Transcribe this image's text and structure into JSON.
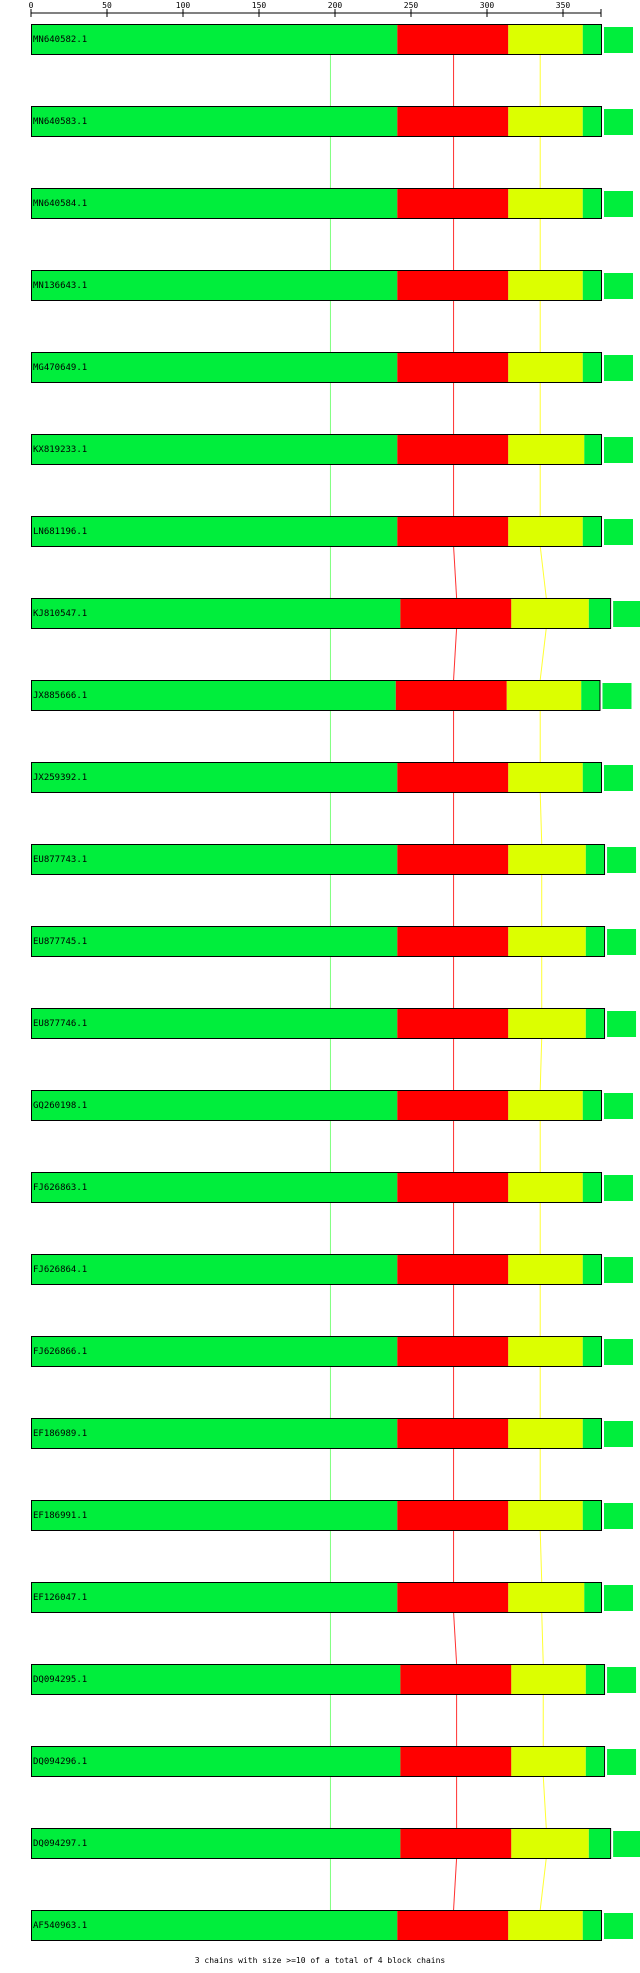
{
  "axis": {
    "ticks": [
      0,
      50,
      100,
      150,
      200,
      250,
      300,
      350
    ],
    "range": [
      0,
      375
    ]
  },
  "colors": {
    "green": "#00ee3c",
    "red": "#ff0000",
    "yellow": "#dcff00",
    "outline": "#000000",
    "axis": "#000000",
    "green_link": "#7dff7d",
    "red_link": "#ff3030",
    "yellow_link": "#ffff30"
  },
  "sequences": [
    {
      "id": "MN640582.1",
      "seg1_end": 241,
      "seg2_end": 314,
      "seg3_end": 363,
      "total": 375
    },
    {
      "id": "MN640583.1",
      "seg1_end": 241,
      "seg2_end": 314,
      "seg3_end": 363,
      "total": 375
    },
    {
      "id": "MN640584.1",
      "seg1_end": 241,
      "seg2_end": 314,
      "seg3_end": 363,
      "total": 375
    },
    {
      "id": "MN136643.1",
      "seg1_end": 241,
      "seg2_end": 314,
      "seg3_end": 363,
      "total": 375
    },
    {
      "id": "MG470649.1",
      "seg1_end": 241,
      "seg2_end": 314,
      "seg3_end": 363,
      "total": 375
    },
    {
      "id": "KX819233.1",
      "seg1_end": 241,
      "seg2_end": 314,
      "seg3_end": 364,
      "total": 375
    },
    {
      "id": "LN681196.1",
      "seg1_end": 241,
      "seg2_end": 314,
      "seg3_end": 363,
      "total": 375
    },
    {
      "id": "KJ810547.1",
      "seg1_end": 243,
      "seg2_end": 316,
      "seg3_end": 367,
      "total": 381
    },
    {
      "id": "JX885666.1",
      "seg1_end": 240,
      "seg2_end": 313,
      "seg3_end": 362,
      "total": 374
    },
    {
      "id": "JX259392.1",
      "seg1_end": 241,
      "seg2_end": 314,
      "seg3_end": 363,
      "total": 375
    },
    {
      "id": "EU877743.1",
      "seg1_end": 241,
      "seg2_end": 314,
      "seg3_end": 365,
      "total": 377
    },
    {
      "id": "EU877745.1",
      "seg1_end": 241,
      "seg2_end": 314,
      "seg3_end": 365,
      "total": 377
    },
    {
      "id": "EU877746.1",
      "seg1_end": 241,
      "seg2_end": 314,
      "seg3_end": 365,
      "total": 377
    },
    {
      "id": "GQ260198.1",
      "seg1_end": 241,
      "seg2_end": 314,
      "seg3_end": 363,
      "total": 375
    },
    {
      "id": "FJ626863.1",
      "seg1_end": 241,
      "seg2_end": 314,
      "seg3_end": 363,
      "total": 375
    },
    {
      "id": "FJ626864.1",
      "seg1_end": 241,
      "seg2_end": 314,
      "seg3_end": 363,
      "total": 375
    },
    {
      "id": "FJ626866.1",
      "seg1_end": 241,
      "seg2_end": 314,
      "seg3_end": 363,
      "total": 375
    },
    {
      "id": "EF186989.1",
      "seg1_end": 241,
      "seg2_end": 314,
      "seg3_end": 363,
      "total": 375
    },
    {
      "id": "EF186991.1",
      "seg1_end": 241,
      "seg2_end": 314,
      "seg3_end": 363,
      "total": 375
    },
    {
      "id": "EF126047.1",
      "seg1_end": 241,
      "seg2_end": 314,
      "seg3_end": 364,
      "total": 375
    },
    {
      "id": "DQ094295.1",
      "seg1_end": 243,
      "seg2_end": 316,
      "seg3_end": 365,
      "total": 377
    },
    {
      "id": "DQ094296.1",
      "seg1_end": 243,
      "seg2_end": 316,
      "seg3_end": 365,
      "total": 377
    },
    {
      "id": "DQ094297.1",
      "seg1_end": 243,
      "seg2_end": 316,
      "seg3_end": 367,
      "total": 381
    },
    {
      "id": "AF540963.1",
      "seg1_end": 241,
      "seg2_end": 314,
      "seg3_end": 363,
      "total": 375
    }
  ],
  "links": {
    "green_pos": [
      197,
      197,
      197,
      197,
      197,
      197,
      197,
      197,
      197,
      197,
      197,
      197,
      197,
      197,
      197,
      197,
      197,
      197,
      197,
      197,
      197,
      197,
      197,
      197
    ],
    "red_pos": [
      278,
      278,
      278,
      278,
      278,
      278,
      278,
      280,
      278,
      278,
      278,
      278,
      278,
      278,
      278,
      278,
      278,
      278,
      278,
      278,
      280,
      280,
      280,
      278
    ],
    "yellow_pos": [
      335,
      335,
      335,
      335,
      335,
      335,
      335,
      339,
      335,
      335,
      336,
      336,
      336,
      335,
      335,
      335,
      335,
      335,
      335,
      336,
      337,
      337,
      339,
      335
    ]
  },
  "footer": "3 chains with size >=10 of a total of 4 block chains"
}
